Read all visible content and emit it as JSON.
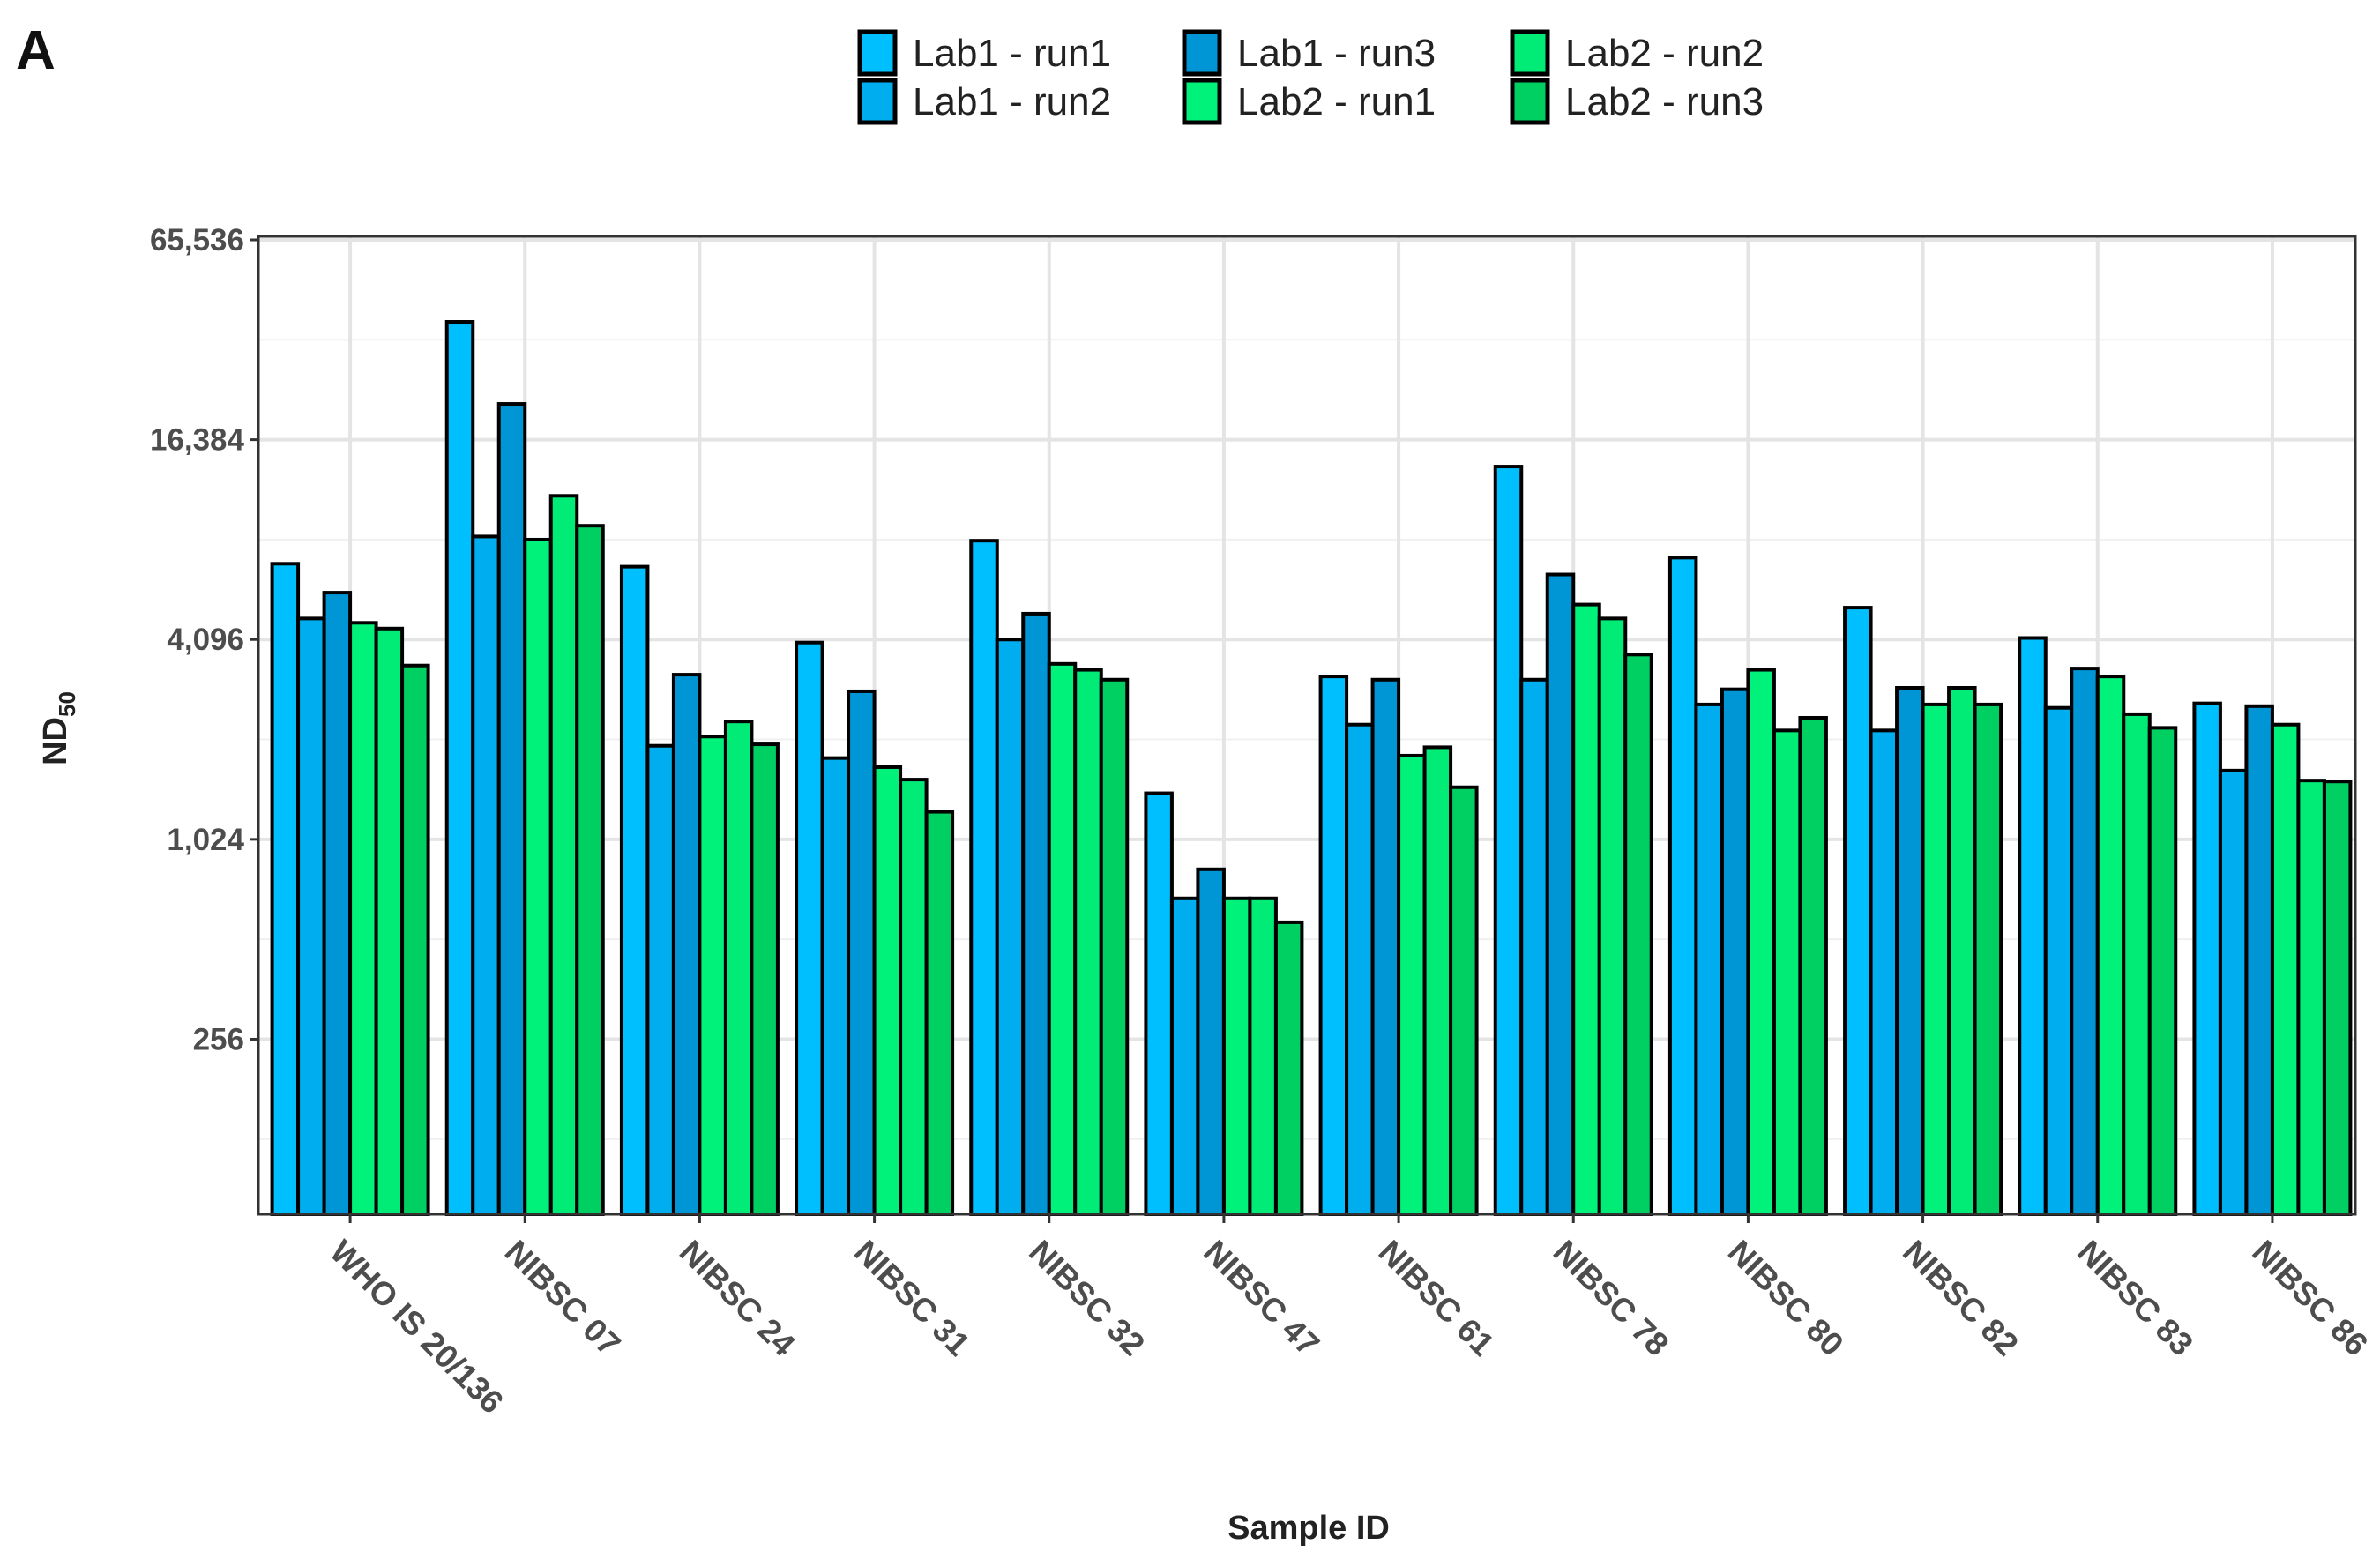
{
  "panel_label": "A",
  "chart_data": {
    "type": "bar",
    "title": "",
    "xlabel": "Sample ID",
    "ylabel": "ND",
    "ylabel_subscript": "50",
    "y_scale": "log2",
    "ylim": [
      76,
      65536
    ],
    "y_ticks": [
      256,
      1024,
      4096,
      16384,
      65536
    ],
    "y_tick_labels": [
      "256",
      "1,024",
      "4,096",
      "16,384",
      "65,536"
    ],
    "grid": true,
    "legend_position": "top",
    "categories": [
      "WHO IS 20/136",
      "NIBSC 07",
      "NIBSC 24",
      "NIBSC 31",
      "NIBSC 32",
      "NIBSC 47",
      "NIBSC 61",
      "NIBSC 78",
      "NIBSC 80",
      "NIBSC 82",
      "NIBSC 83",
      "NIBSC 86"
    ],
    "series": [
      {
        "name": "Lab1 - run1",
        "color": "#00BFFF",
        "values": [
          6930,
          37100,
          6790,
          4010,
          8130,
          1410,
          3170,
          13600,
          7230,
          5110,
          4140,
          2630
        ]
      },
      {
        "name": "Lab1 - run2",
        "color": "#00AEEF",
        "values": [
          4740,
          8370,
          1960,
          1800,
          4096,
          680,
          2270,
          3100,
          2610,
          2180,
          2550,
          1650
        ]
      },
      {
        "name": "Lab1 - run3",
        "color": "#0096D6",
        "values": [
          5670,
          21000,
          3210,
          2860,
          4900,
          832,
          3100,
          6430,
          2900,
          2930,
          3350,
          2580
        ]
      },
      {
        "name": "Lab2 - run1",
        "color": "#00F27A",
        "values": [
          4600,
          8190,
          2090,
          1690,
          3460,
          680,
          1830,
          5220,
          3320,
          2610,
          3170,
          2270
        ]
      },
      {
        "name": "Lab2 - run2",
        "color": "#00EC76",
        "values": [
          4420,
          11100,
          2320,
          1550,
          3320,
          680,
          1940,
          4740,
          2180,
          2930,
          2440,
          1540
        ]
      },
      {
        "name": "Lab2 - run3",
        "color": "#00D062",
        "values": [
          3420,
          9020,
          1980,
          1240,
          3100,
          576,
          1470,
          3690,
          2380,
          2610,
          2220,
          1530
        ]
      }
    ],
    "legend_order": [
      0,
      1,
      2,
      3,
      4,
      5
    ]
  }
}
